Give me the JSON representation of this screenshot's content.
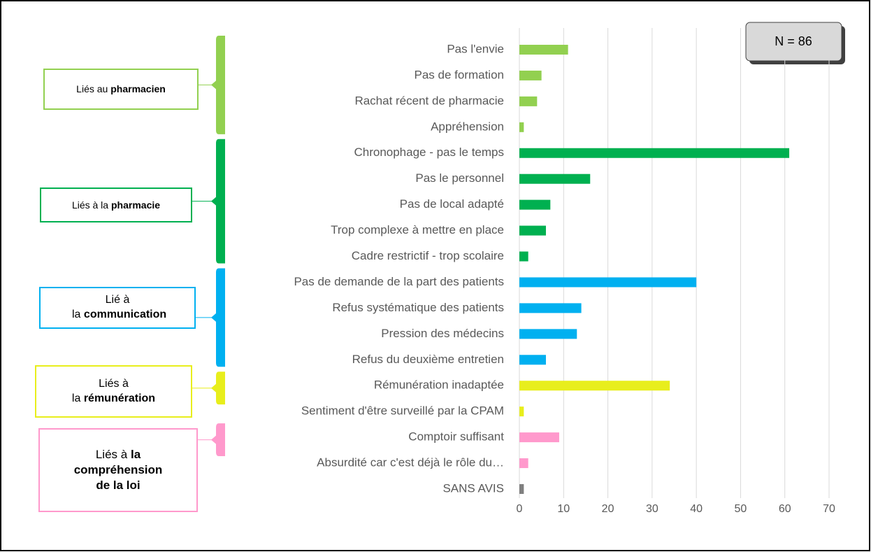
{
  "chart_data": {
    "type": "bar",
    "annotation": "N = 86",
    "xlim": [
      0,
      70
    ],
    "xticks": [
      0,
      10,
      20,
      30,
      40,
      50,
      60,
      70
    ],
    "grid": true,
    "groups": [
      {
        "label": "Liés au",
        "bold": "pharmacien",
        "color": "#92d050",
        "categories": [
          "Pas l'envie",
          "Pas de formation",
          "Rachat récent de pharmacie",
          "Appréhension"
        ],
        "values": [
          11,
          5,
          4,
          1
        ]
      },
      {
        "label": "Liés à la",
        "bold": "pharmacie",
        "color": "#00b050",
        "categories": [
          "Chronophage - pas le temps",
          "Pas le personnel",
          "Pas de local adapté",
          "Trop complexe à mettre en place",
          "Cadre restrictif  - trop scolaire"
        ],
        "values": [
          61,
          16,
          7,
          6,
          2
        ]
      },
      {
        "label": "Lié à la",
        "bold": "communication",
        "color": "#00b0f0",
        "categories": [
          "Pas de demande de la part des patients",
          "Refus systématique des patients",
          "Pression des médecins",
          "Refus du deuxième entretien"
        ],
        "values": [
          40,
          14,
          13,
          6
        ]
      },
      {
        "label": "Liés à la",
        "bold": "rémunération",
        "color": "#e8ee1c",
        "categories": [
          "Rémunération inadaptée",
          "Sentiment d'être surveillé par la CPAM"
        ],
        "values": [
          34,
          1
        ]
      },
      {
        "label": "Liés à",
        "bold": "la compréhension de la loi",
        "color": "#ff99cc",
        "categories": [
          "Comptoir suffisant",
          "Absurdité car c'est déjà le rôle du…"
        ],
        "values": [
          9,
          2
        ]
      },
      {
        "color": "#7f7f7f",
        "categories": [
          "SANS AVIS"
        ],
        "values": [
          1
        ]
      }
    ]
  }
}
